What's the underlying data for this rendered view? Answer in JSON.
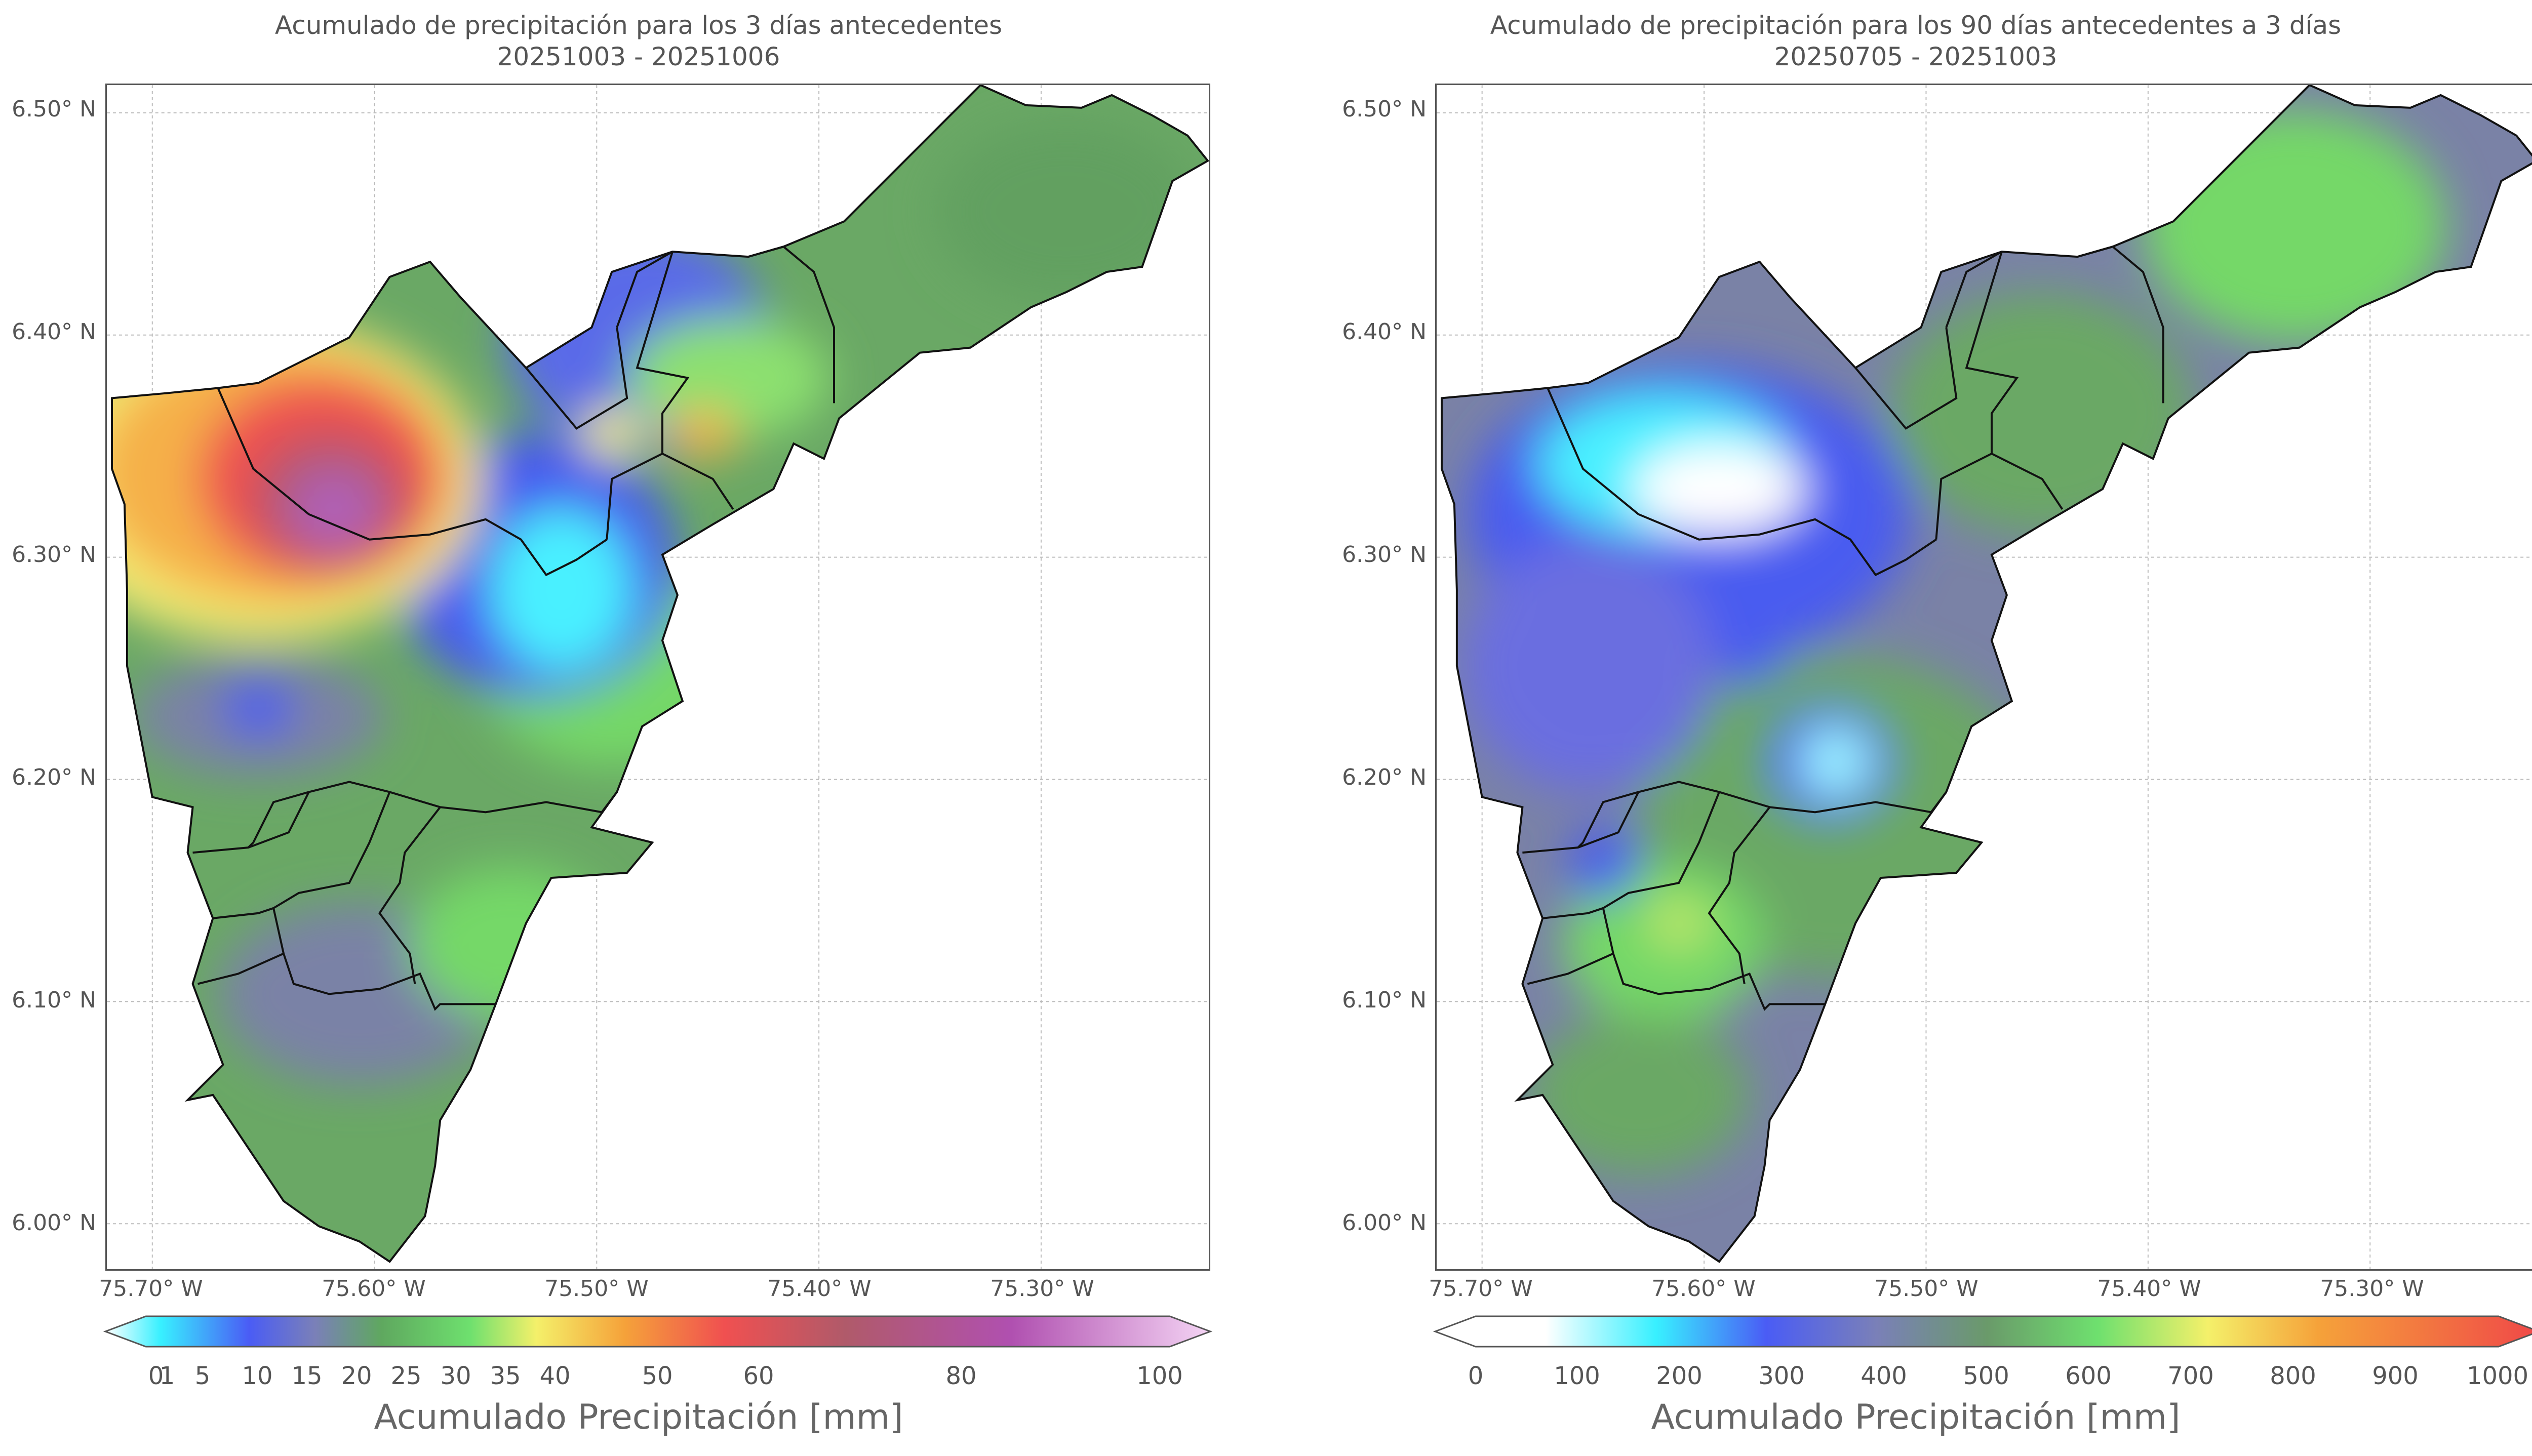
{
  "left_panel": {
    "title_line1": "Acumulado de precipitación para los 3 días antecedentes",
    "title_line2": "20251003 - 20251006",
    "y_ticks": [
      "6.50° N",
      "6.40° N",
      "6.30° N",
      "6.20° N",
      "6.10° N",
      "6.00° N"
    ],
    "x_ticks": [
      "75.70° W",
      "75.60° W",
      "75.50° W",
      "75.40° W",
      "75.30° W"
    ],
    "colorbar": {
      "ticks": [
        "0",
        "1",
        "5",
        "10",
        "15",
        "20",
        "25",
        "30",
        "35",
        "40",
        "50",
        "60",
        "80",
        "100"
      ],
      "label": "Acumulado Precipitación [mm]",
      "colors": [
        "#ffffff",
        "#38f0ff",
        "#4a5cf5",
        "#7a80b8",
        "#5fa85f",
        "#6ee06e",
        "#f4f06a",
        "#f5a23a",
        "#f05050",
        "#b05a6a",
        "#b050b0",
        "#f4d4f4"
      ]
    }
  },
  "right_panel": {
    "title_line1": "Acumulado de precipitación para los 90 días antecedentes a 3 días",
    "title_line2": "20250705 - 20251003",
    "y_ticks": [
      "6.50° N",
      "6.40° N",
      "6.30° N",
      "6.20° N",
      "6.10° N",
      "6.00° N"
    ],
    "x_ticks": [
      "75.70° W",
      "75.60° W",
      "75.50° W",
      "75.40° W",
      "75.30° W"
    ],
    "colorbar": {
      "ticks": [
        "0",
        "100",
        "200",
        "300",
        "400",
        "500",
        "600",
        "700",
        "800",
        "900",
        "1000"
      ],
      "label": "Acumulado Precipitación [mm]",
      "colors": [
        "#ffffff",
        "#38f0ff",
        "#4a5cf5",
        "#7a80b8",
        "#6a9a6a",
        "#6ee06e",
        "#f4f06a",
        "#f5a23a",
        "#f04848"
      ]
    }
  },
  "map_colors": {
    "outline": "#111111",
    "grid": "#bbbbbb",
    "green": "#6aa865",
    "bright_green": "#74d868",
    "slate": "#7a82a6",
    "blue": "#4a5cf0",
    "cyan": "#48f0ff",
    "red": "#ef5050",
    "orange": "#f5b04a",
    "yellow": "#f4ee74",
    "purple": "#b060b8"
  }
}
